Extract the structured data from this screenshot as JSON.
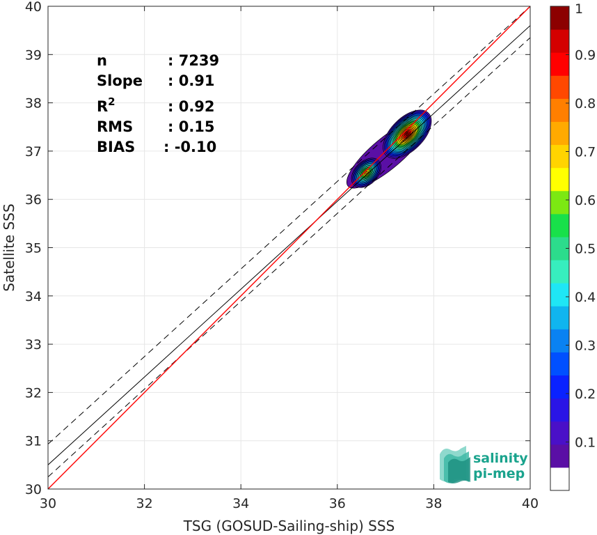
{
  "chart_data": {
    "type": "scatter",
    "subtype": "density-contour",
    "xlabel": "TSG (GOSUD-Sailing-ship) SSS",
    "ylabel": "Satellite SSS",
    "xlim": [
      30,
      40
    ],
    "ylim": [
      30,
      40
    ],
    "xticks": [
      "30",
      "32",
      "34",
      "36",
      "38",
      "40"
    ],
    "yticks": [
      "30",
      "31",
      "32",
      "33",
      "34",
      "35",
      "36",
      "37",
      "38",
      "39",
      "40"
    ],
    "grid": true,
    "stats": [
      {
        "key": "n",
        "sup": "",
        "value": ": 7239"
      },
      {
        "key": "Slope",
        "sup": "",
        "value": ": 0.91"
      },
      {
        "key": "R",
        "sup": "2",
        "value": ": 0.92"
      },
      {
        "key": "RMS",
        "sup": "",
        "value": ": 0.15"
      },
      {
        "key": "BIAS",
        "sup": "",
        "value": ": -0.10"
      }
    ],
    "lines": {
      "identity": {
        "slope": 1,
        "intercept": 0,
        "color": "#ff0000"
      },
      "regression": {
        "points": [
          [
            30,
            30.5
          ],
          [
            40,
            39.6
          ]
        ],
        "color": "#000000"
      },
      "upper_bound": {
        "points": [
          [
            30,
            30.93
          ],
          [
            40,
            40.0
          ]
        ],
        "color": "#000000",
        "dashed": true
      },
      "lower_bound": {
        "points": [
          [
            30,
            30.25
          ],
          [
            40,
            39.35
          ]
        ],
        "color": "#000000",
        "dashed": true
      }
    },
    "density_peaks": [
      {
        "x": 37.45,
        "y": 37.35,
        "density": 1.0
      },
      {
        "x": 36.6,
        "y": 36.55,
        "density": 0.65
      }
    ],
    "colorbar": {
      "ticks": [
        "0.1",
        "0.2",
        "0.3",
        "0.4",
        "0.5",
        "0.6",
        "0.7",
        "0.8",
        "0.9",
        "1"
      ],
      "range": [
        0,
        1
      ],
      "colors": [
        "#ffffff",
        "#5a0fa5",
        "#4a10c8",
        "#2a15e6",
        "#0a22ff",
        "#0050ff",
        "#0a82f2",
        "#10b5ef",
        "#1fe6f5",
        "#37eebe",
        "#2cdc8c",
        "#18e04a",
        "#7ce812",
        "#ffff00",
        "#ffd400",
        "#ffaa00",
        "#ff7f00",
        "#ff4800",
        "#ff0000",
        "#d40000",
        "#8c0000"
      ]
    }
  },
  "logo": {
    "line1": "salinity",
    "line2": "pi-mep"
  }
}
